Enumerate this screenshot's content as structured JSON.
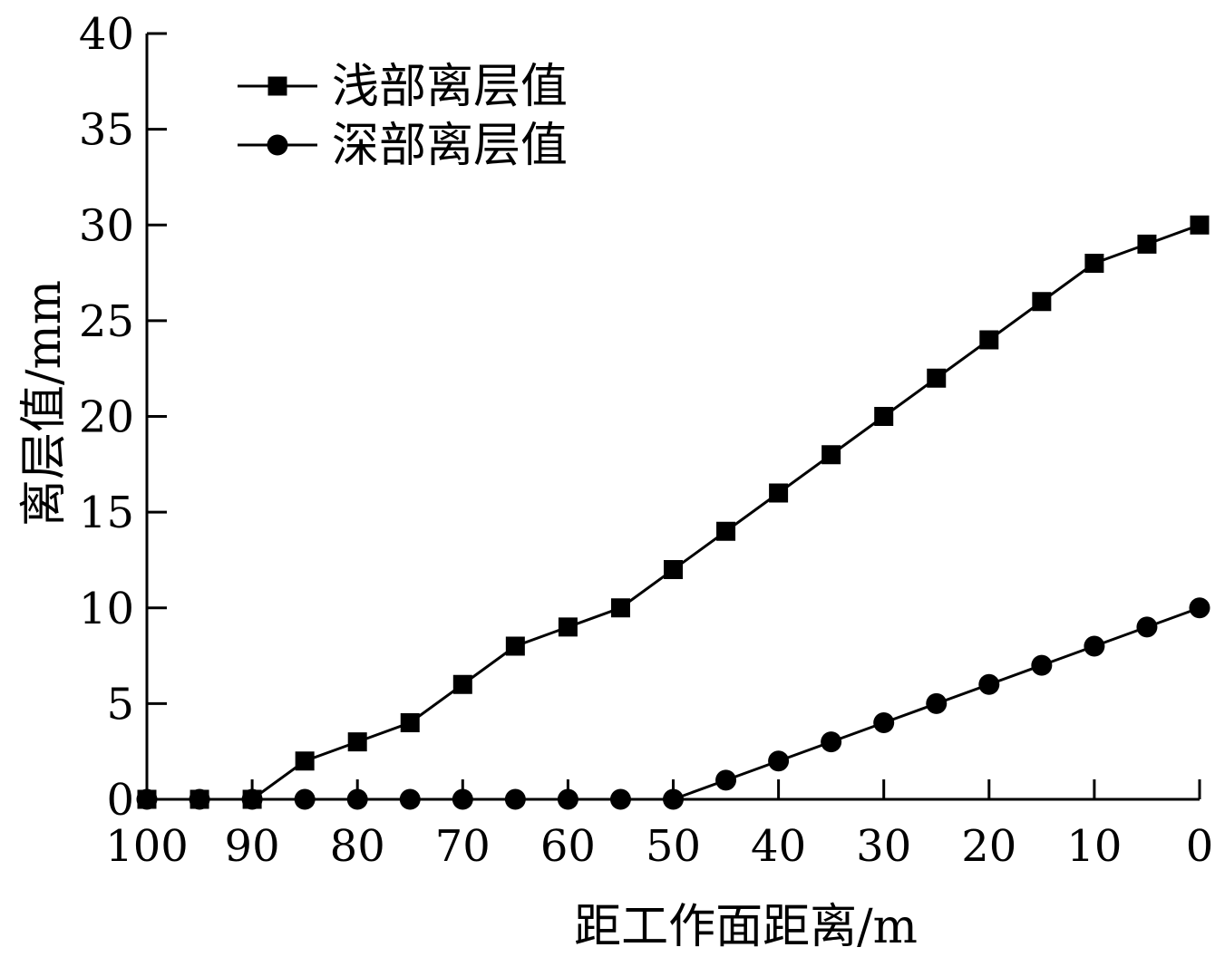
{
  "chart_data": {
    "type": "line",
    "xlabel": "距工作面距离/m",
    "ylabel": "离层值/mm",
    "x_reversed": true,
    "xlim": [
      100,
      0
    ],
    "ylim": [
      0,
      40
    ],
    "x_ticks": [
      100,
      90,
      80,
      70,
      60,
      50,
      40,
      30,
      20,
      10,
      0
    ],
    "y_ticks": [
      0,
      5,
      10,
      15,
      20,
      25,
      30,
      35,
      40
    ],
    "grid": false,
    "legend_position": "top-left",
    "x": [
      100,
      95,
      90,
      85,
      80,
      75,
      70,
      65,
      60,
      55,
      50,
      45,
      40,
      35,
      30,
      25,
      20,
      15,
      10,
      5,
      0
    ],
    "series": [
      {
        "name": "浅部离层值",
        "marker": "square",
        "color": "#000000",
        "values": [
          0,
          0,
          0,
          2,
          3,
          4,
          6,
          8,
          9,
          10,
          12,
          14,
          16,
          18,
          20,
          22,
          24,
          26,
          28,
          29,
          30
        ]
      },
      {
        "name": "深部离层值",
        "marker": "circle",
        "color": "#000000",
        "values": [
          0,
          0,
          0,
          0,
          0,
          0,
          0,
          0,
          0,
          0,
          0,
          1,
          2,
          3,
          4,
          5,
          6,
          7,
          8,
          9,
          10
        ]
      }
    ]
  }
}
